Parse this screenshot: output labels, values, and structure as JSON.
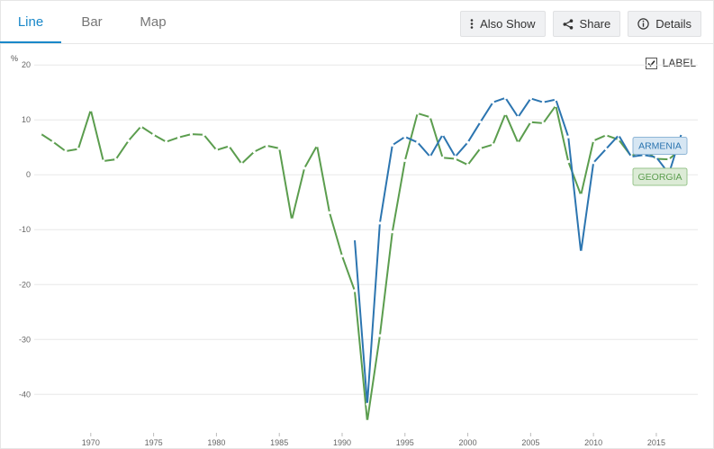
{
  "tabs": [
    {
      "label": "Line",
      "active": true
    },
    {
      "label": "Bar",
      "active": false
    },
    {
      "label": "Map",
      "active": false
    }
  ],
  "toolbar": {
    "also_show": "Also Show",
    "share": "Share",
    "details": "Details"
  },
  "label_toggle": {
    "label": "LABEL",
    "checked": true
  },
  "colors": {
    "accent": "#1a88c9",
    "armenia": "#2c75b0",
    "georgia": "#5b9d4e"
  },
  "chart_data": {
    "type": "line",
    "ylabel": "%",
    "ylim": [
      -47,
      22
    ],
    "xlim": [
      1965.5,
      2018.3
    ],
    "yticks": [
      20,
      10,
      0,
      -10,
      -20,
      -30,
      -40
    ],
    "ytick_labels": [
      "20",
      "10",
      "0",
      "-10",
      "-20",
      "-30",
      "-40"
    ],
    "xticks": [
      1970,
      1975,
      1980,
      1985,
      1990,
      1995,
      2000,
      2005,
      2010,
      2015
    ],
    "xtick_labels": [
      "1970",
      "1975",
      "1980",
      "1985",
      "1990",
      "1995",
      "2000",
      "2005",
      "2010",
      "2015"
    ],
    "grid": true,
    "series": [
      {
        "name": "ARMENIA",
        "x": [
          1991,
          1992,
          1993,
          1994,
          1995,
          1996,
          1997,
          1998,
          1999,
          2000,
          2001,
          2002,
          2003,
          2004,
          2005,
          2006,
          2007,
          2008,
          2009,
          2010,
          2011,
          2012,
          2013,
          2014,
          2015,
          2016,
          2017
        ],
        "values": [
          -11.7,
          -41.8,
          -8.8,
          5.4,
          6.9,
          5.9,
          3.3,
          7.3,
          3.3,
          5.9,
          9.6,
          13.2,
          14.0,
          10.5,
          13.9,
          13.2,
          13.7,
          6.9,
          -14.1,
          2.2,
          4.7,
          7.2,
          3.3,
          3.6,
          3.2,
          0.2,
          7.5
        ]
      },
      {
        "name": "GEORGIA",
        "x": [
          1966,
          1967,
          1968,
          1969,
          1970,
          1971,
          1972,
          1973,
          1974,
          1975,
          1976,
          1977,
          1978,
          1979,
          1980,
          1981,
          1982,
          1983,
          1984,
          1985,
          1986,
          1987,
          1988,
          1989,
          1990,
          1991,
          1992,
          1993,
          1994,
          1995,
          1996,
          1997,
          1998,
          1999,
          2000,
          2001,
          2002,
          2003,
          2004,
          2005,
          2006,
          2007,
          2008,
          2009,
          2010,
          2011,
          2012,
          2013,
          2014,
          2015,
          2016,
          2017
        ],
        "values": [
          7.5,
          6.0,
          4.3,
          4.7,
          11.8,
          2.5,
          2.8,
          6.2,
          8.8,
          7.3,
          6.0,
          6.8,
          7.4,
          7.3,
          4.5,
          5.2,
          2.0,
          4.2,
          5.3,
          4.8,
          -8.2,
          1.2,
          5.3,
          -6.9,
          -14.8,
          -21.1,
          -44.9,
          -29.3,
          -10.4,
          2.6,
          11.2,
          10.5,
          3.1,
          2.9,
          1.8,
          4.8,
          5.5,
          11.1,
          5.8,
          9.6,
          9.4,
          12.6,
          2.4,
          -3.7,
          6.2,
          7.2,
          6.4,
          3.4,
          4.6,
          2.9,
          2.8,
          4.8
        ]
      }
    ]
  }
}
